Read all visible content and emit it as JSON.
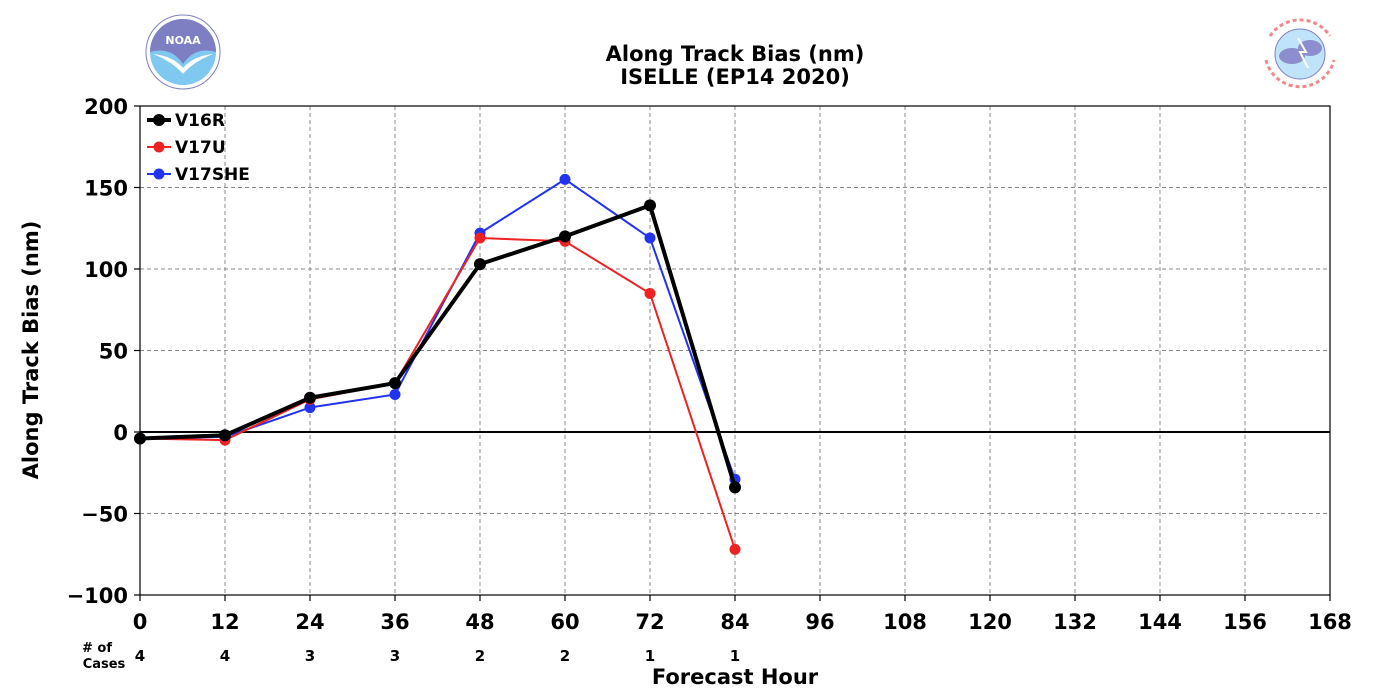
{
  "chart_data": {
    "type": "line",
    "title": "Along Track Bias (nm)",
    "subtitle": "ISELLE (EP14 2020)",
    "xlabel": "Forecast Hour",
    "ylabel": "Along Track Bias (nm)",
    "xlim": [
      0,
      168
    ],
    "ylim": [
      -100,
      200
    ],
    "x_ticks": [
      0,
      12,
      24,
      36,
      48,
      60,
      72,
      84,
      96,
      108,
      120,
      132,
      144,
      156,
      168
    ],
    "y_ticks": [
      -100,
      -50,
      0,
      50,
      100,
      150,
      200
    ],
    "x_tick_labels": [
      "0",
      "12",
      "24",
      "36",
      "48",
      "60",
      "72",
      "84",
      "96",
      "108",
      "120",
      "132",
      "144",
      "156",
      "168"
    ],
    "y_tick_labels": [
      "−100",
      "−50",
      "0",
      "50",
      "100",
      "150",
      "200"
    ],
    "grid": true,
    "legend_position": "top-left",
    "series": [
      {
        "name": "V16R",
        "color": "#000000",
        "x": [
          0,
          12,
          24,
          36,
          48,
          60,
          72,
          84
        ],
        "values": [
          -4,
          -2,
          21,
          30,
          103,
          120,
          139,
          -34
        ]
      },
      {
        "name": "V17U",
        "color": "#ee2222",
        "x": [
          0,
          12,
          24,
          36,
          48,
          60,
          72,
          84
        ],
        "values": [
          -4,
          -5,
          20,
          30,
          119,
          117,
          85,
          -72
        ]
      },
      {
        "name": "V17SHE",
        "color": "#2233ee",
        "x": [
          0,
          12,
          24,
          36,
          48,
          60,
          72,
          84
        ],
        "values": [
          -4,
          -3,
          15,
          23,
          122,
          155,
          119,
          -29
        ]
      }
    ],
    "cases": {
      "label_line1": "# of",
      "label_line2": "Cases",
      "x": [
        0,
        12,
        24,
        36,
        48,
        60,
        72,
        84
      ],
      "values": [
        "4",
        "4",
        "3",
        "3",
        "2",
        "2",
        "1",
        "1"
      ]
    }
  },
  "logos": {
    "left": {
      "icon": "noaa-logo",
      "text": "NOAA"
    },
    "right": {
      "icon": "nws-logo"
    }
  }
}
